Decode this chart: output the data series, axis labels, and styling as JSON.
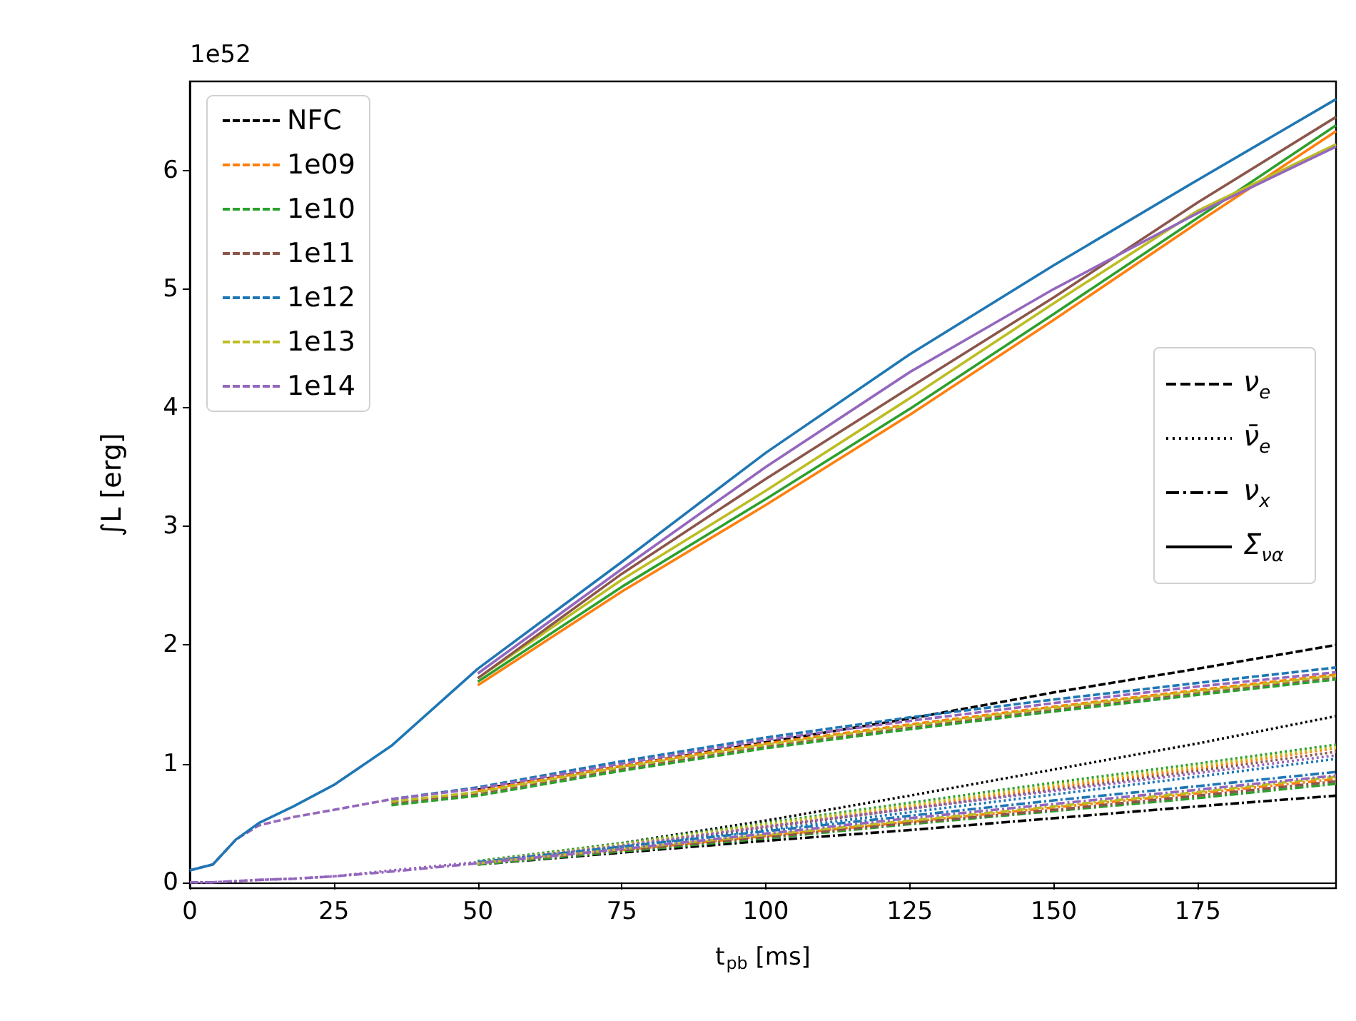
{
  "chart_data": {
    "type": "line",
    "xlabel": "t$_{pb}$ [ms]",
    "ylabel": "∫L [erg]",
    "annotations": [
      "1e52",
      "ν$_{e}$",
      "ν̄$_{e}$",
      "ν$_{x}$",
      "Σ$_{να}$"
    ],
    "x": [
      0,
      4,
      8,
      12,
      18,
      25,
      35,
      50,
      75,
      100,
      125,
      150,
      175,
      199
    ],
    "xlim": [
      0,
      199
    ],
    "xticks": [
      0,
      25,
      50,
      75,
      100,
      125,
      150,
      175
    ],
    "ylim": [
      -0.05,
      6.75
    ],
    "yticks": [
      0,
      1,
      2,
      3,
      4,
      5,
      6
    ],
    "legend": "top left",
    "marker": "none",
    "series": [
      {
        "name": "NFC",
        "color": "#000000",
        "line_style": "dashed",
        "values": [
          null,
          null,
          null,
          null,
          null,
          null,
          null,
          0.78,
          0.98,
          1.18,
          1.38,
          1.6,
          1.8,
          2.0
        ]
      },
      {
        "name": "1e09",
        "color": "#ff7f0e",
        "line_style": "dashed",
        "values": [
          null,
          null,
          null,
          null,
          null,
          null,
          null,
          0.77,
          0.98,
          1.17,
          1.33,
          1.48,
          1.62,
          1.75
        ]
      },
      {
        "name": "1e10",
        "color": "#2ca02c",
        "line_style": "dashed",
        "values": [
          null,
          null,
          null,
          null,
          null,
          null,
          0.65,
          0.73,
          0.94,
          1.13,
          1.29,
          1.44,
          1.58,
          1.71
        ]
      },
      {
        "name": "1e11",
        "color": "#8c564b",
        "line_style": "dashed",
        "values": [
          null,
          null,
          null,
          null,
          null,
          null,
          0.67,
          0.75,
          0.96,
          1.15,
          1.31,
          1.46,
          1.6,
          1.73
        ]
      },
      {
        "name": "1e12",
        "color": "#1f77b4",
        "line_style": "dashed",
        "values": [
          null,
          null,
          null,
          null,
          null,
          null,
          0.7,
          0.8,
          1.02,
          1.22,
          1.39,
          1.54,
          1.68,
          1.81
        ]
      },
      {
        "name": "1e13",
        "color": "#bcbd22",
        "line_style": "dashed",
        "values": [
          null,
          null,
          null,
          null,
          null,
          null,
          0.68,
          0.76,
          0.97,
          1.16,
          1.32,
          1.47,
          1.61,
          1.74
        ]
      },
      {
        "name": "1e14",
        "color": "#9467bd",
        "line_style": "dashed",
        "values": [
          0.1,
          0.15,
          0.36,
          0.48,
          0.55,
          0.61,
          0.7,
          0.79,
          1.0,
          1.2,
          1.36,
          1.51,
          1.65,
          1.77
        ]
      },
      {
        "color": "#000000",
        "line_style": "dotted",
        "values": [
          null,
          null,
          null,
          null,
          null,
          null,
          null,
          0.17,
          0.33,
          0.52,
          0.73,
          0.95,
          1.17,
          1.4
        ]
      },
      {
        "color": "#ff7f0e",
        "line_style": "dotted",
        "values": [
          null,
          null,
          null,
          null,
          null,
          null,
          null,
          null,
          0.31,
          0.48,
          0.64,
          0.8,
          0.96,
          1.13
        ]
      },
      {
        "color": "#2ca02c",
        "line_style": "dotted",
        "values": [
          null,
          null,
          null,
          null,
          null,
          null,
          null,
          0.18,
          0.33,
          0.5,
          0.67,
          0.84,
          1.0,
          1.16
        ]
      },
      {
        "color": "#8c564b",
        "line_style": "dotted",
        "values": [
          null,
          null,
          null,
          null,
          null,
          null,
          null,
          0.16,
          0.3,
          0.46,
          0.62,
          0.78,
          0.94,
          1.1
        ]
      },
      {
        "color": "#1f77b4",
        "line_style": "dotted",
        "values": [
          null,
          null,
          null,
          null,
          null,
          null,
          null,
          0.17,
          0.3,
          0.44,
          0.59,
          0.74,
          0.89,
          1.04
        ]
      },
      {
        "color": "#bcbd22",
        "line_style": "dotted",
        "values": [
          null,
          null,
          null,
          null,
          null,
          null,
          null,
          0.17,
          0.32,
          0.49,
          0.65,
          0.82,
          0.98,
          1.14
        ]
      },
      {
        "color": "#9467bd",
        "line_style": "dotted",
        "values": [
          0,
          0,
          0.01,
          0.02,
          0.03,
          0.05,
          0.1,
          0.17,
          0.31,
          0.47,
          0.62,
          0.77,
          0.92,
          1.07
        ]
      },
      {
        "color": "#000000",
        "line_style": "dashdot",
        "values": [
          null,
          null,
          null,
          null,
          null,
          null,
          null,
          0.15,
          0.25,
          0.35,
          0.44,
          0.54,
          0.64,
          0.73
        ]
      },
      {
        "color": "#ff7f0e",
        "line_style": "dashdot",
        "values": [
          null,
          null,
          null,
          null,
          null,
          null,
          null,
          null,
          0.27,
          0.39,
          0.51,
          0.63,
          0.75,
          0.87
        ]
      },
      {
        "color": "#2ca02c",
        "line_style": "dashdot",
        "values": [
          null,
          null,
          null,
          null,
          null,
          null,
          null,
          0.15,
          0.26,
          0.37,
          0.49,
          0.6,
          0.71,
          0.83
        ]
      },
      {
        "color": "#8c564b",
        "line_style": "dashdot",
        "values": [
          null,
          null,
          null,
          null,
          null,
          null,
          null,
          0.16,
          0.27,
          0.38,
          0.5,
          0.61,
          0.73,
          0.85
        ]
      },
      {
        "color": "#1f77b4",
        "line_style": "dashdot",
        "values": [
          null,
          null,
          null,
          null,
          null,
          null,
          null,
          0.17,
          0.3,
          0.43,
          0.56,
          0.69,
          0.81,
          0.93
        ]
      },
      {
        "color": "#bcbd22",
        "line_style": "dashdot",
        "values": [
          null,
          null,
          null,
          null,
          null,
          null,
          null,
          0.16,
          0.28,
          0.4,
          0.52,
          0.64,
          0.76,
          0.89
        ]
      },
      {
        "color": "#9467bd",
        "line_style": "dashdot",
        "values": [
          0,
          0,
          0.01,
          0.02,
          0.03,
          0.05,
          0.09,
          0.16,
          0.28,
          0.41,
          0.54,
          0.66,
          0.78,
          0.9
        ]
      },
      {
        "color": "#ff7f0e",
        "line_style": "solid",
        "values": [
          null,
          null,
          null,
          null,
          null,
          null,
          null,
          1.66,
          2.45,
          3.18,
          3.94,
          4.74,
          5.56,
          6.33
        ]
      },
      {
        "color": "#2ca02c",
        "line_style": "solid",
        "values": [
          null,
          null,
          null,
          null,
          null,
          null,
          null,
          1.69,
          2.49,
          3.23,
          3.99,
          4.79,
          5.6,
          6.38
        ]
      },
      {
        "color": "#bcbd22",
        "line_style": "solid",
        "values": [
          null,
          null,
          null,
          null,
          null,
          null,
          null,
          1.72,
          2.55,
          3.3,
          4.08,
          4.88,
          5.66,
          6.22
        ]
      },
      {
        "color": "#8c564b",
        "line_style": "solid",
        "values": [
          null,
          null,
          null,
          null,
          null,
          null,
          null,
          1.72,
          2.6,
          3.4,
          4.17,
          4.93,
          5.73,
          6.45
        ]
      },
      {
        "color": "#9467bd",
        "line_style": "solid",
        "values": [
          null,
          null,
          null,
          null,
          null,
          null,
          null,
          1.76,
          2.64,
          3.5,
          4.3,
          5.0,
          5.64,
          6.2
        ]
      },
      {
        "color": "#1f77b4",
        "line_style": "solid",
        "values": [
          0.1,
          0.15,
          0.36,
          0.5,
          0.64,
          0.82,
          1.15,
          1.8,
          2.7,
          3.62,
          4.45,
          5.2,
          5.92,
          6.6
        ]
      }
    ]
  }
}
